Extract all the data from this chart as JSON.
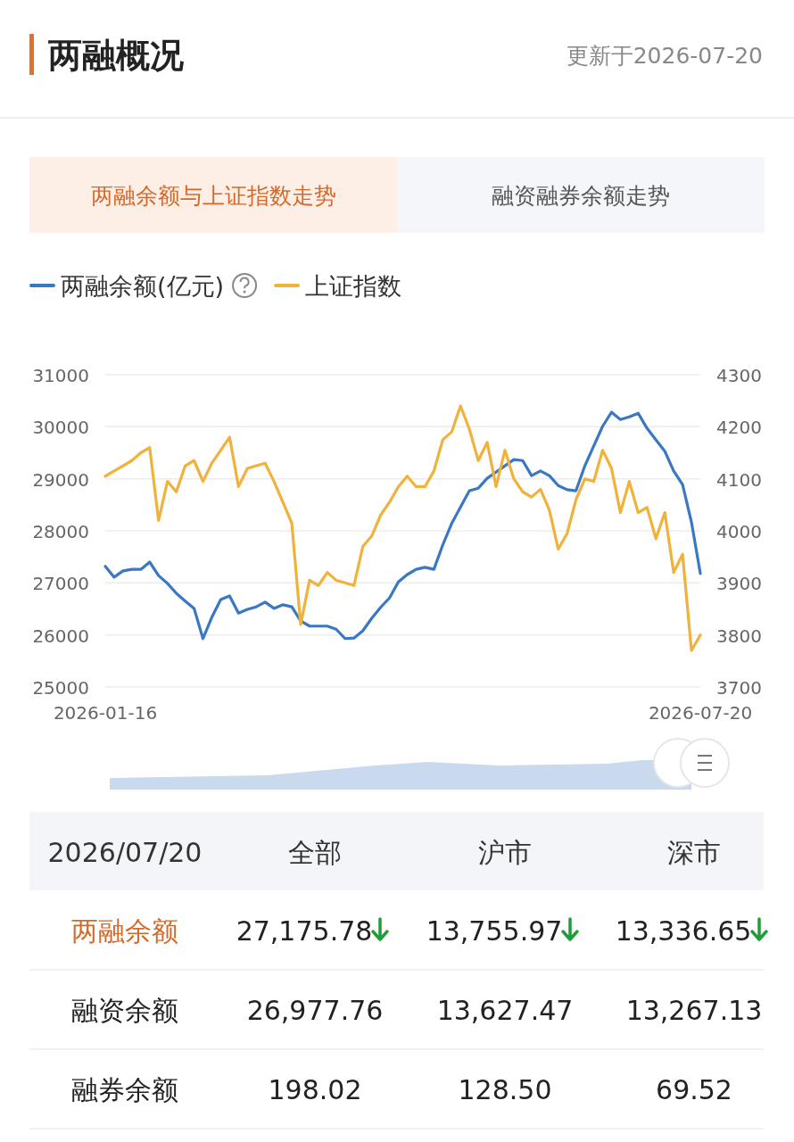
{
  "chart_data": [
    {
      "type": "line",
      "title": "两融概况",
      "subtitle": "更新于2026-07-20",
      "annotations": [
        "两融余额与上证指数走势",
        "融资融券余额走势"
      ],
      "categories": [
        "2026-01-16",
        null,
        null,
        null,
        null,
        null,
        null,
        null,
        null,
        null,
        null,
        null,
        null,
        null,
        null,
        null,
        null,
        null,
        null,
        null,
        null,
        null,
        null,
        null,
        null,
        null,
        null,
        null,
        null,
        null,
        null,
        null,
        null,
        null,
        null,
        null,
        null,
        null,
        null,
        null,
        null,
        null,
        null,
        null,
        null,
        null,
        null,
        null,
        null,
        null,
        null,
        null,
        null,
        null,
        null,
        null,
        null,
        null,
        null,
        null,
        null,
        null,
        null,
        null,
        null,
        null,
        null,
        "2026-07-20"
      ],
      "series": [
        {
          "name": "两融余额(亿元)",
          "color": "#3b78c3",
          "values": [
            27320,
            27110,
            27230,
            27260,
            27260,
            27400,
            27140,
            26990,
            26800,
            26650,
            26510,
            25930,
            26340,
            26680,
            26750,
            26420,
            26490,
            26540,
            26630,
            26510,
            26580,
            26540,
            26270,
            26170,
            26170,
            26170,
            26110,
            25930,
            25940,
            26080,
            26320,
            26530,
            26710,
            27020,
            27160,
            27260,
            27300,
            27260,
            27730,
            28140,
            28460,
            28770,
            28820,
            29010,
            29130,
            29250,
            29370,
            29350,
            29060,
            29150,
            29060,
            28870,
            28790,
            28770,
            29250,
            29630,
            30010,
            30280,
            30140,
            30190,
            30260,
            29970,
            29750,
            29530,
            29150,
            28890,
            28170,
            27180
          ]
        },
        {
          "name": "上证指数",
          "color": "#f0b23b",
          "axis": "y2",
          "values": [
            4105,
            4115,
            4125,
            4135,
            4150,
            4160,
            4020,
            4095,
            4075,
            4125,
            4135,
            4095,
            4130,
            4155,
            4180,
            4085,
            4120,
            4125,
            4130,
            4095,
            4055,
            4015,
            3820,
            3905,
            3895,
            3920,
            3905,
            3900,
            3895,
            3970,
            3990,
            4030,
            4055,
            4085,
            4105,
            4085,
            4085,
            4115,
            4175,
            4190,
            4240,
            4195,
            4135,
            4170,
            4085,
            4155,
            4100,
            4075,
            4065,
            4080,
            4040,
            3965,
            3995,
            4060,
            4100,
            4095,
            4155,
            4120,
            4035,
            4095,
            4035,
            4045,
            3985,
            4035,
            3920,
            3955,
            3770,
            3800
          ]
        }
      ],
      "ylim": [
        25000,
        31000
      ],
      "yticks": [
        25000,
        26000,
        27000,
        28000,
        29000,
        30000,
        31000
      ],
      "y2lim": [
        3700,
        4300
      ],
      "y2ticks": [
        3700,
        3800,
        3900,
        4000,
        4100,
        4200,
        4300
      ],
      "grid": "y",
      "legend": "top left"
    },
    {
      "type": "other",
      "annotations": [
        "2026/07/20",
        "全部",
        "沪市",
        "深市",
        "两融余额",
        "27,175.78",
        "13,755.97",
        "13,336.65",
        "融资余额",
        "26,977.76",
        "13,627.47",
        "13,267.13",
        "融券余额",
        "198.02",
        "128.50",
        "69.52"
      ]
    }
  ]
}
